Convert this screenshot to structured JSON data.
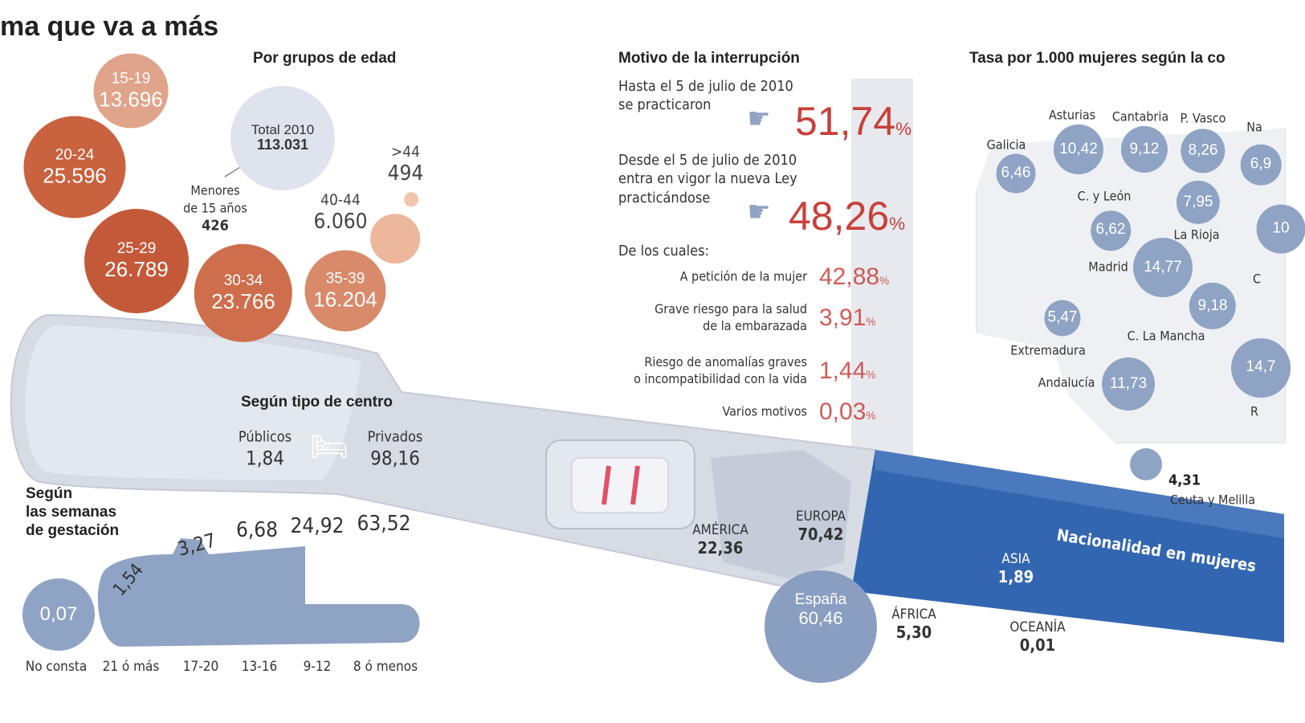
{
  "headline": "ma que va a más",
  "colors": {
    "accent_red": "#c8403a",
    "bubble_blue": "#8fa3c4",
    "stick_blue": "#2f5fa8",
    "orange_dark": "#c4593a"
  },
  "icons": [
    "pointing-hand-icon",
    "bed-icon",
    "pregnancy-test-icon"
  ],
  "chart_data": [
    {
      "type": "bubble",
      "title": "Por grupos de edad",
      "total_label": "Total 2010",
      "total_value": "113.031",
      "under15_label_1": "Menores",
      "under15_label_2": "de 15 años",
      "under15_value": "426",
      "points": [
        {
          "category": "15-19",
          "value": 13696,
          "label": "13.696"
        },
        {
          "category": "20-24",
          "value": 25596,
          "label": "25.596"
        },
        {
          "category": "25-29",
          "value": 26789,
          "label": "26.789"
        },
        {
          "category": "30-34",
          "value": 23766,
          "label": "23.766"
        },
        {
          "category": "35-39",
          "value": 16204,
          "label": "16.204"
        },
        {
          "category": "40-44",
          "value": 6060,
          "label": "6.060"
        },
        {
          "category": ">44",
          "value": 494,
          "label": "494"
        }
      ]
    },
    {
      "type": "table",
      "title": "Según tipo de centro",
      "items": [
        {
          "category": "Públicos",
          "value": 1.84,
          "label": "1,84"
        },
        {
          "category": "Privados",
          "value": 98.16,
          "label": "98,16"
        }
      ]
    },
    {
      "type": "bar",
      "title_1": "Según",
      "title_2": "las semanas",
      "title_3": "de gestación",
      "items": [
        {
          "category": "No consta",
          "value": 0.07,
          "label": "0,07"
        },
        {
          "category": "21 ó más",
          "value": 1.54,
          "label": "1,54"
        },
        {
          "category": "17-20",
          "value": 3.27,
          "label": "3,27"
        },
        {
          "category": "13-16",
          "value": 6.68,
          "label": "6,68"
        },
        {
          "category": "9-12",
          "value": 24.92,
          "label": "24,92"
        },
        {
          "category": "8 ó menos",
          "value": 63.52,
          "label": "63,52"
        }
      ]
    },
    {
      "type": "table",
      "title": "Motivo de la interrupción",
      "before_1": "Hasta el 5 de julio de 2010",
      "before_2": "se practicaron",
      "before_value": "51,74",
      "after_1": "Desde el 5 de julio de 2010",
      "after_2": "entra en vigor la nueva Ley",
      "after_3": "practicándose",
      "after_value": "48,26",
      "pct_sign": "%",
      "breakdown_label": "De los cuales:",
      "items": [
        {
          "line1": "A petición de la mujer",
          "line2": "",
          "value": 42.88,
          "label": "42,88"
        },
        {
          "line1": "Grave riesgo para la salud",
          "line2": "de la embarazada",
          "value": 3.91,
          "label": "3,91"
        },
        {
          "line1": "Riesgo de anomalías graves",
          "line2": "o incompatibilidad  con la vida",
          "value": 1.44,
          "label": "1,44"
        },
        {
          "line1": "Varios motivos",
          "line2": "",
          "value": 0.03,
          "label": "0,03"
        }
      ]
    },
    {
      "type": "bubble",
      "title": "Tasa por 1.000 mujeres según la co",
      "regions": [
        {
          "name": "Galicia",
          "value": 6.46,
          "label": "6,46"
        },
        {
          "name": "Asturias",
          "value": 10.42,
          "label": "10,42"
        },
        {
          "name": "Cantabria",
          "value": 9.12,
          "label": "9,12"
        },
        {
          "name": "P. Vasco",
          "value": 8.26,
          "label": "8,26"
        },
        {
          "name": "Na",
          "value": 6.9,
          "label": "6,9"
        },
        {
          "name": "C. y León",
          "value": 6.62,
          "label": "6,62"
        },
        {
          "name": "",
          "value": 7.95,
          "label": "7,95"
        },
        {
          "name": "La Rioja",
          "value": null,
          "label": ""
        },
        {
          "name": "",
          "value": 10,
          "label": "10"
        },
        {
          "name": "Madrid",
          "value": 14.77,
          "label": "14,77"
        },
        {
          "name": "",
          "value": 9.18,
          "label": "9,18"
        },
        {
          "name": "C",
          "value": null,
          "label": ""
        },
        {
          "name": "Extremadura",
          "value": 5.47,
          "label": "5,47"
        },
        {
          "name": "C. La Mancha",
          "value": null,
          "label": ""
        },
        {
          "name": "Andalucía",
          "value": 11.73,
          "label": "11,73"
        },
        {
          "name": "R",
          "value": 14.7,
          "label": "14,7"
        },
        {
          "name": "Ceuta y Melilla",
          "value": 4.31,
          "label": "4,31"
        }
      ]
    },
    {
      "type": "bubble",
      "title": "Nacionalidad en mujeres",
      "items": [
        {
          "name": "España",
          "value": 60.46,
          "label": "60,46"
        },
        {
          "name": "AMÉRICA",
          "value": 22.36,
          "label": "22,36"
        },
        {
          "name": "EUROPA",
          "value": 70.42,
          "label": "70,42"
        },
        {
          "name": "ASIA",
          "value": 1.89,
          "label": "1,89"
        },
        {
          "name": "ÁFRICA",
          "value": 5.3,
          "label": "5,30"
        },
        {
          "name": "OCEANÍA",
          "value": 0.01,
          "label": "0,01"
        }
      ]
    }
  ]
}
